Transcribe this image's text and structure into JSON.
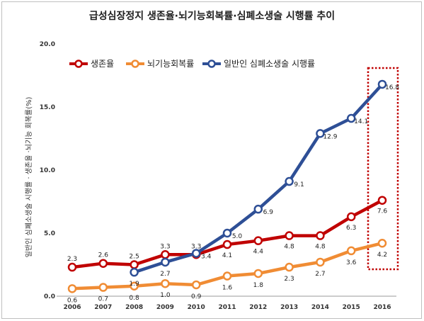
{
  "chart_data": {
    "type": "line",
    "title": "급성심장정지 생존율·뇌기능회복률·심폐소생술 시행률 추이",
    "xlabel": "",
    "ylabel": "일반인 심폐소생술 시행률 · 생존율 ·뇌기능 회복률(%)",
    "ylim": [
      0,
      20
    ],
    "yticks": [
      "0.0",
      "5.0",
      "10.0",
      "15.0",
      "20.0"
    ],
    "categories": [
      "2006",
      "2007",
      "2008",
      "2009",
      "2010",
      "2011",
      "2012",
      "2013",
      "2014",
      "2015",
      "2016"
    ],
    "grid": false,
    "legend_position": "top-left",
    "series": [
      {
        "name": "생존율",
        "color": "#c00000",
        "values": [
          2.3,
          2.6,
          2.5,
          3.3,
          3.3,
          4.1,
          4.4,
          4.8,
          4.8,
          6.3,
          7.6
        ],
        "labels": [
          "2.3",
          "2.6",
          "2.5",
          "3.3",
          "3.3",
          "4.1",
          "4.4",
          "4.8",
          "4.8",
          "6.3",
          "7.6"
        ]
      },
      {
        "name": "뇌기능회복률",
        "color": "#f08c34",
        "values": [
          0.6,
          0.7,
          0.8,
          1.0,
          0.9,
          1.6,
          1.8,
          2.3,
          2.7,
          3.6,
          4.2
        ],
        "labels": [
          "0.6",
          "0.7",
          "0.8",
          "1.0",
          "0.9",
          "1.6",
          "1.8",
          "2.3",
          "2.7",
          "3.6",
          "4.2"
        ]
      },
      {
        "name": "일반인 심폐소생술 시행률",
        "color": "#2e4f96",
        "values": [
          null,
          null,
          1.9,
          2.7,
          3.4,
          5.0,
          6.9,
          9.1,
          12.9,
          14.1,
          16.8
        ],
        "labels": [
          "",
          "",
          "1.9",
          "2.7",
          "3.4",
          "5.0",
          "6.9",
          "9.1",
          "12.9",
          "14.1",
          "16.8"
        ]
      }
    ],
    "annotations": [
      {
        "type": "dotted-box",
        "target_category": "2016",
        "color": "#c00000"
      }
    ]
  }
}
